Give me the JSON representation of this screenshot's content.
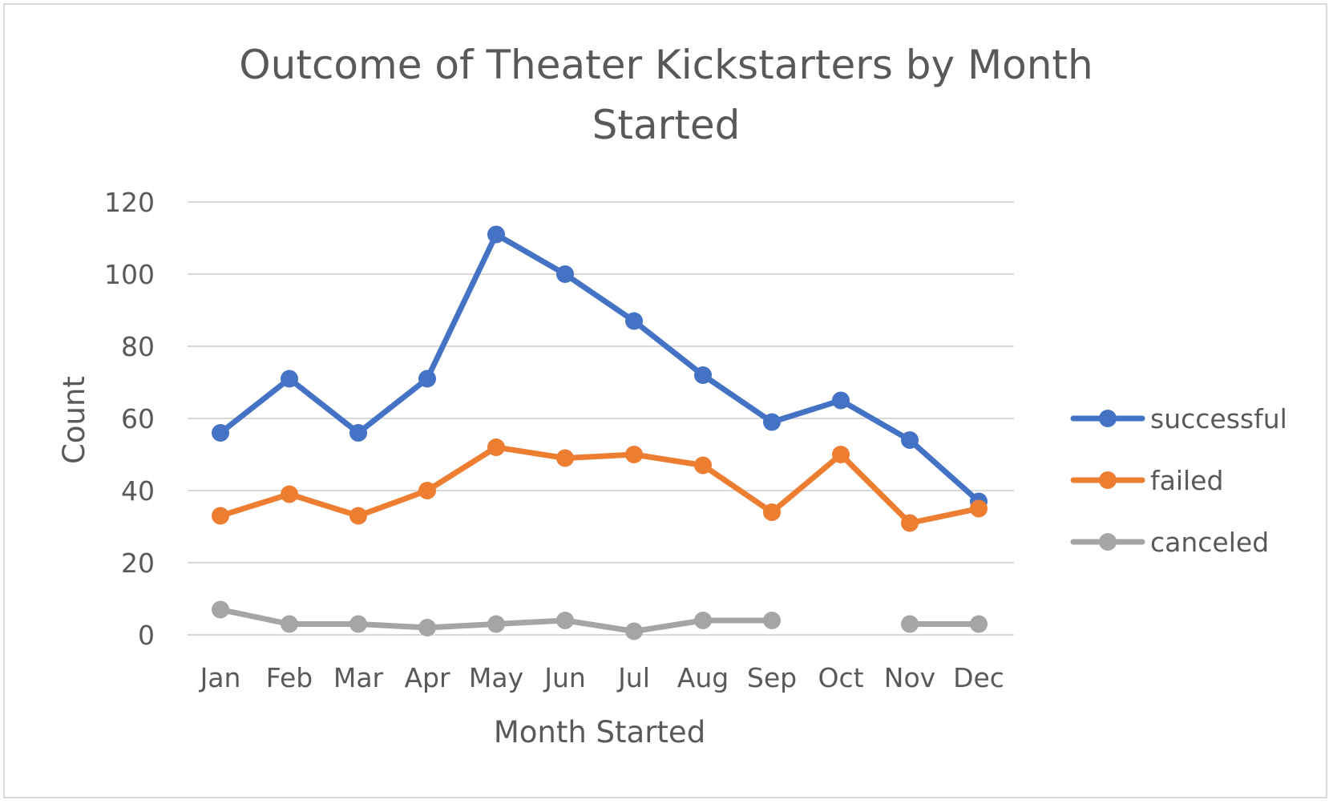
{
  "chart_data": {
    "type": "line",
    "title_lines": [
      "Outcome of Theater Kickstarters by Month",
      "Started"
    ],
    "xlabel": "Month Started",
    "ylabel": "Count",
    "ylim": [
      0,
      120
    ],
    "yticks": [
      0,
      20,
      40,
      60,
      80,
      100,
      120
    ],
    "grid": true,
    "legend_position": "right",
    "categories": [
      "Jan",
      "Feb",
      "Mar",
      "Apr",
      "May",
      "Jun",
      "Jul",
      "Aug",
      "Sep",
      "Oct",
      "Nov",
      "Dec"
    ],
    "series": [
      {
        "name": "successful",
        "color": "#4472c4",
        "values": [
          56,
          71,
          56,
          71,
          111,
          100,
          87,
          72,
          59,
          65,
          54,
          37
        ]
      },
      {
        "name": "failed",
        "color": "#ed7d31",
        "values": [
          33,
          39,
          33,
          40,
          52,
          49,
          50,
          47,
          34,
          50,
          31,
          35
        ]
      },
      {
        "name": "canceled",
        "color": "#a5a5a5",
        "values": [
          7,
          3,
          3,
          2,
          3,
          4,
          1,
          4,
          4,
          null,
          3,
          3
        ]
      }
    ]
  }
}
